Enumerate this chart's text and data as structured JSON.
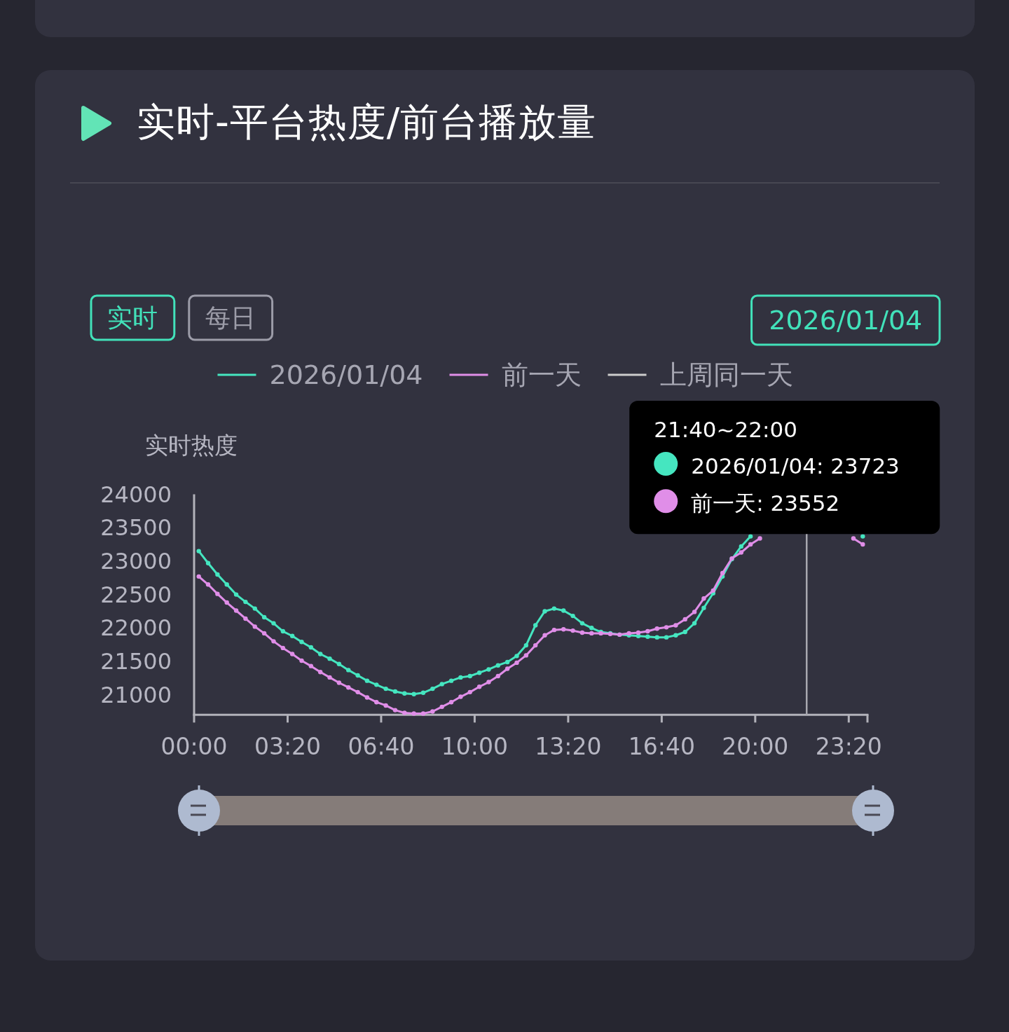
{
  "chart_data": {
    "type": "line",
    "title": "实时-平台热度/前台播放量",
    "ylabel": "实时热度",
    "legend": "top",
    "marker": "circle",
    "line_style": "solid",
    "xlim": [
      0,
      24
    ],
    "xticks": [
      {
        "value": 0,
        "label": "00:00"
      },
      {
        "value": 3.3333,
        "label": "03:20"
      },
      {
        "value": 6.6667,
        "label": "06:40"
      },
      {
        "value": 10,
        "label": "10:00"
      },
      {
        "value": 13.3333,
        "label": "13:20"
      },
      {
        "value": 16.6667,
        "label": "16:40"
      },
      {
        "value": 20,
        "label": "20:00"
      },
      {
        "value": 23.3333,
        "label": "23:20"
      },
      {
        "value": 24,
        "label": null
      }
    ],
    "ylim": [
      20700,
      24000
    ],
    "yticks": [
      21000,
      21500,
      22000,
      22500,
      23000,
      23500,
      24000
    ],
    "series": [
      {
        "name": "2026/01/04",
        "color": "#45e6c0",
        "x": [
          0.1667,
          0.5,
          0.8333,
          1.1667,
          1.5,
          1.8333,
          2.1667,
          2.5,
          2.8333,
          3.1667,
          3.5,
          3.8333,
          4.1667,
          4.5,
          4.8333,
          5.1667,
          5.5,
          5.8333,
          6.1667,
          6.5,
          6.8333,
          7.1667,
          7.5,
          7.8333,
          8.1667,
          8.5,
          8.8333,
          9.1667,
          9.5,
          9.8333,
          10.1667,
          10.5,
          10.8333,
          11.1667,
          11.5,
          11.8333,
          12.1667,
          12.5,
          12.8333,
          13.1667,
          13.5,
          13.8333,
          14.1667,
          14.5,
          14.8333,
          15.1667,
          15.5,
          15.8333,
          16.1667,
          16.5,
          16.8333,
          17.1667,
          17.5,
          17.8333,
          18.1667,
          18.5,
          18.8333,
          19.1667,
          19.5,
          19.8333,
          20.1667,
          23.8333
        ],
        "values": [
          23150,
          22970,
          22800,
          22650,
          22500,
          22390,
          22290,
          22160,
          22070,
          21950,
          21880,
          21790,
          21710,
          21610,
          21540,
          21460,
          21370,
          21290,
          21210,
          21150,
          21090,
          21050,
          21020,
          21010,
          21030,
          21090,
          21160,
          21210,
          21260,
          21280,
          21330,
          21380,
          21440,
          21490,
          21580,
          21740,
          22040,
          22250,
          22290,
          22260,
          22180,
          22070,
          22000,
          21940,
          21920,
          21900,
          21890,
          21880,
          21870,
          21860,
          21860,
          21890,
          21940,
          22070,
          22300,
          22520,
          22770,
          23030,
          23220,
          23370,
          null,
          23370
        ]
      },
      {
        "name": "前一天",
        "color": "#e08ee8",
        "x": [
          0.1667,
          0.5,
          0.8333,
          1.1667,
          1.5,
          1.8333,
          2.1667,
          2.5,
          2.8333,
          3.1667,
          3.5,
          3.8333,
          4.1667,
          4.5,
          4.8333,
          5.1667,
          5.5,
          5.8333,
          6.1667,
          6.5,
          6.8333,
          7.1667,
          7.5,
          7.8333,
          8.1667,
          8.5,
          8.8333,
          9.1667,
          9.5,
          9.8333,
          10.1667,
          10.5,
          10.8333,
          11.1667,
          11.5,
          11.8333,
          12.1667,
          12.5,
          12.8333,
          13.1667,
          13.5,
          13.8333,
          14.1667,
          14.5,
          14.8333,
          15.1667,
          15.5,
          15.8333,
          16.1667,
          16.5,
          16.8333,
          17.1667,
          17.5,
          17.8333,
          18.1667,
          18.5,
          18.8333,
          19.1667,
          19.5,
          19.8333,
          20.1667,
          20.5,
          23.5,
          23.8333
        ],
        "values": [
          22770,
          22650,
          22510,
          22380,
          22260,
          22140,
          22020,
          21920,
          21800,
          21700,
          21610,
          21510,
          21430,
          21340,
          21260,
          21180,
          21110,
          21040,
          20960,
          20890,
          20840,
          20770,
          20730,
          20720,
          20720,
          20750,
          20820,
          20890,
          20970,
          21040,
          21120,
          21190,
          21280,
          21390,
          21480,
          21590,
          21740,
          21890,
          21970,
          21980,
          21960,
          21930,
          21920,
          21920,
          21910,
          21900,
          21920,
          21930,
          21950,
          21990,
          22010,
          22040,
          22130,
          22240,
          22440,
          22560,
          22820,
          23040,
          23130,
          23250,
          23340,
          null,
          23340,
          23250
        ]
      },
      {
        "name": "上周同一天",
        "color": "#cccccc"
      }
    ],
    "ref_lines": [
      {
        "axis": "x",
        "value": 21.8333,
        "label": "21:40~22:00",
        "color": "#a8a8b0"
      }
    ],
    "annotations": [
      {
        "text": "2026/01/04: 23723",
        "x": 21.8333,
        "y": 23723
      },
      {
        "text": "前一天: 23552",
        "x": 21.8333,
        "y": 23552
      },
      "实时",
      "每日",
      "2026/01/04"
    ]
  }
}
